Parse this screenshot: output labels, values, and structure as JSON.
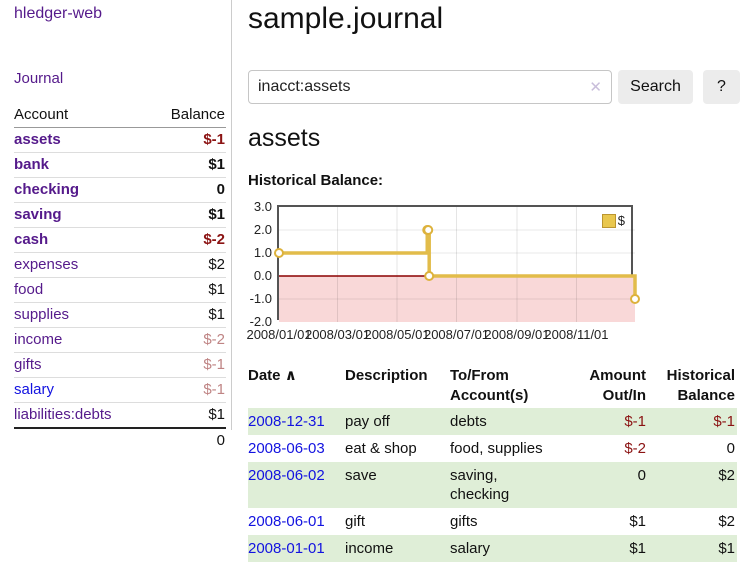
{
  "app": {
    "brand": "hledger-web",
    "nav_journal": "Journal"
  },
  "colors": {
    "accent_purple": "#551a8b",
    "link_blue": "#1313e0",
    "negative_strong": "#8b1313",
    "negative_soft": "#bf8484",
    "row_stripe_green": "#dfeed7",
    "chart_line_gold": "#e2bc4a",
    "chart_negative_fill": "#f9d8d8",
    "chart_zero_line": "#8b0000"
  },
  "sidebar": {
    "header": {
      "account": "Account",
      "balance": "Balance"
    },
    "accounts": [
      {
        "name": "assets",
        "balance": "$-1",
        "depth": 1,
        "bold": true,
        "balance_tone": "neg-strong"
      },
      {
        "name": "bank",
        "balance": "$1",
        "depth": 2,
        "bold": true,
        "balance_tone": "normal"
      },
      {
        "name": "checking",
        "balance": "0",
        "depth": 3,
        "bold": true,
        "balance_tone": "normal"
      },
      {
        "name": "saving",
        "balance": "$1",
        "depth": 3,
        "bold": true,
        "balance_tone": "normal"
      },
      {
        "name": "cash",
        "balance": "$-2",
        "depth": 2,
        "bold": true,
        "balance_tone": "neg-strong"
      },
      {
        "name": "expenses",
        "balance": "$2",
        "depth": 1,
        "bold": false,
        "balance_tone": "normal"
      },
      {
        "name": "food",
        "balance": "$1",
        "depth": 2,
        "bold": false,
        "balance_tone": "normal"
      },
      {
        "name": "supplies",
        "balance": "$1",
        "depth": 2,
        "bold": false,
        "balance_tone": "normal"
      },
      {
        "name": "income",
        "balance": "$-2",
        "depth": 1,
        "bold": false,
        "balance_tone": "neg-soft"
      },
      {
        "name": "gifts",
        "balance": "$-1",
        "depth": 2,
        "bold": false,
        "balance_tone": "neg-soft"
      },
      {
        "name": "salary",
        "balance": "$-1",
        "depth": 2,
        "bold": false,
        "balance_tone": "neg-soft",
        "link_color": "blue"
      },
      {
        "name": "liabilities:debts",
        "balance": "$1",
        "depth": 1,
        "bold": false,
        "balance_tone": "normal"
      }
    ],
    "total": "0"
  },
  "header": {
    "title": "sample.journal"
  },
  "search": {
    "value": "inacct:assets",
    "clear_icon": "✕",
    "button_label": "Search",
    "help_label": "?"
  },
  "account_page": {
    "title": "assets",
    "chart_label": "Historical Balance:"
  },
  "chart_data": {
    "type": "line",
    "step": true,
    "title": "Historical Balance",
    "series": [
      {
        "name": "$",
        "points": [
          {
            "date": "2008-01-01",
            "value": 1
          },
          {
            "date": "2008-06-01",
            "value": 2
          },
          {
            "date": "2008-06-02",
            "value": 2
          },
          {
            "date": "2008-06-03",
            "value": 0
          },
          {
            "date": "2008-12-31",
            "value": -1
          }
        ]
      }
    ],
    "x_range": [
      "2008-01-01",
      "2008-12-31"
    ],
    "ylim": [
      -2,
      3
    ],
    "y_ticks": [
      "3.0",
      "2.0",
      "1.0",
      "0.0",
      "-1.0",
      "-2.0"
    ],
    "x_ticks": [
      "2008/01/01",
      "2008/03/01",
      "2008/05/01",
      "2008/07/01",
      "2008/09/01",
      "2008/11/01"
    ],
    "legend": {
      "label": "$",
      "position": "top-right"
    },
    "grid": true,
    "negative_region_fill": true
  },
  "register_table": {
    "sort_icon": "∧",
    "columns": [
      "Date",
      "Description",
      "To/From Account(s)",
      "Amount Out/In",
      "Historical Balance"
    ],
    "rows": [
      {
        "date": "2008-12-31",
        "description": "pay off",
        "accounts": "debts",
        "amount": "$-1",
        "amount_neg": true,
        "balance": "$-1",
        "balance_neg": true
      },
      {
        "date": "2008-06-03",
        "description": "eat & shop",
        "accounts": "food, supplies",
        "amount": "$-2",
        "amount_neg": true,
        "balance": "0",
        "balance_neg": false
      },
      {
        "date": "2008-06-02",
        "description": "save",
        "accounts": "saving, checking",
        "amount": "0",
        "amount_neg": false,
        "balance": "$2",
        "balance_neg": false
      },
      {
        "date": "2008-06-01",
        "description": "gift",
        "accounts": "gifts",
        "amount": "$1",
        "amount_neg": false,
        "balance": "$2",
        "balance_neg": false
      },
      {
        "date": "2008-01-01",
        "description": "income",
        "accounts": "salary",
        "amount": "$1",
        "amount_neg": false,
        "balance": "$1",
        "balance_neg": false
      }
    ]
  }
}
